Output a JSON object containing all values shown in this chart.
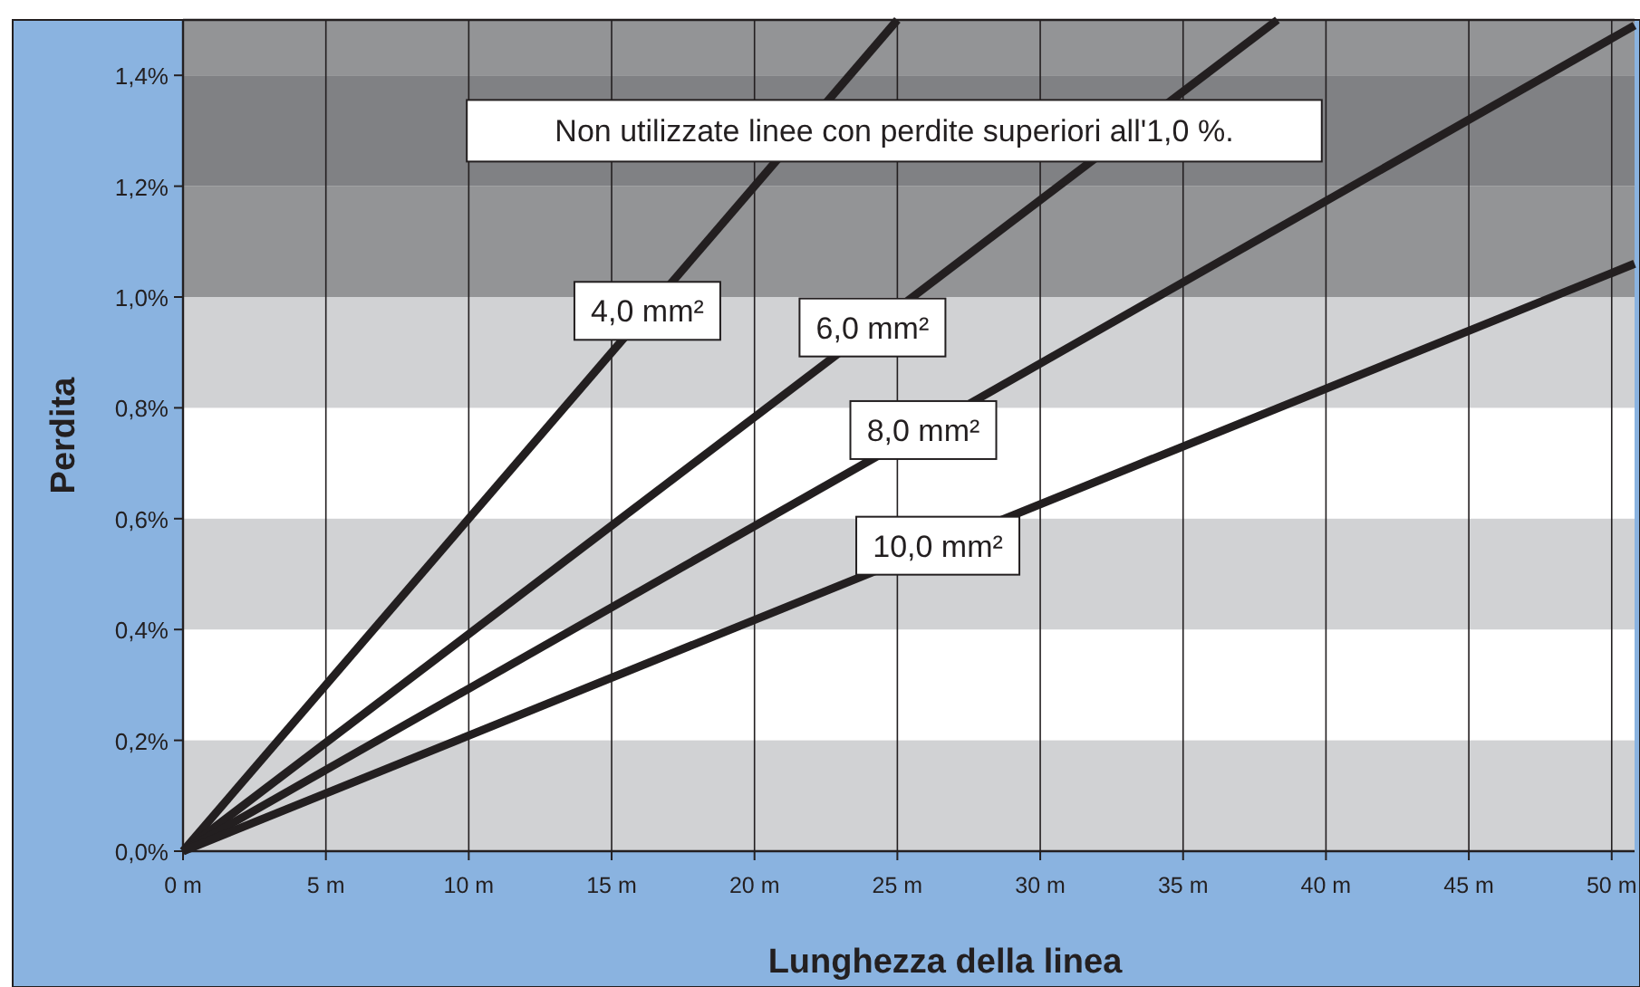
{
  "chart_data": {
    "type": "line",
    "xlabel": "Lunghezza della linea",
    "ylabel": "Perdita",
    "xlim": [
      0,
      50.8
    ],
    "ylim": [
      0,
      1.5
    ],
    "xticks": [
      {
        "value": 0,
        "label": "0 m"
      },
      {
        "value": 5,
        "label": "5 m"
      },
      {
        "value": 10,
        "label": "10 m"
      },
      {
        "value": 15,
        "label": "15 m"
      },
      {
        "value": 20,
        "label": "20 m"
      },
      {
        "value": 25,
        "label": "25 m"
      },
      {
        "value": 30,
        "label": "30 m"
      },
      {
        "value": 35,
        "label": "35 m"
      },
      {
        "value": 40,
        "label": "40 m"
      },
      {
        "value": 45,
        "label": "45 m"
      },
      {
        "value": 50,
        "label": "50 m"
      }
    ],
    "yticks": [
      {
        "value": 0,
        "label": "0,0%"
      },
      {
        "value": 0.2,
        "label": "0,2%"
      },
      {
        "value": 0.4,
        "label": "0,4%"
      },
      {
        "value": 0.6,
        "label": "0,6%"
      },
      {
        "value": 0.8,
        "label": "0,8%"
      },
      {
        "value": 1.0,
        "label": "1,0%"
      },
      {
        "value": 1.2,
        "label": "1,2%"
      },
      {
        "value": 1.4,
        "label": "1,4%"
      }
    ],
    "grid": "x",
    "legend": false,
    "marker": "none",
    "line_style": "solid",
    "bands": [
      {
        "axis": "y",
        "from": 0,
        "to": 0.2,
        "color": "#d1d2d4"
      },
      {
        "axis": "y",
        "from": 0.4,
        "to": 0.6,
        "color": "#d1d2d4"
      },
      {
        "axis": "y",
        "from": 0.8,
        "to": 1.0,
        "color": "#d1d2d4"
      },
      {
        "axis": "y",
        "from": 1.0,
        "to": 1.2,
        "color": "#939496"
      },
      {
        "axis": "y",
        "from": 1.2,
        "to": 1.4,
        "color": "#808184"
      },
      {
        "axis": "y",
        "from": 1.4,
        "to": 1.5,
        "color": "#939496"
      }
    ],
    "series": [
      {
        "name": "4,0 mm²",
        "color": "#231f20",
        "x": [
          0,
          25
        ],
        "values": [
          0,
          1.5
        ]
      },
      {
        "name": "6,0 mm²",
        "color": "#231f20",
        "x": [
          0,
          38.3
        ],
        "values": [
          0,
          1.5
        ]
      },
      {
        "name": "8,0 mm²",
        "color": "#231f20",
        "x": [
          0,
          50.8
        ],
        "values": [
          0,
          1.49
        ]
      },
      {
        "name": "10,0 mm²",
        "color": "#231f20",
        "x": [
          0,
          50.8
        ],
        "values": [
          0,
          1.06
        ]
      }
    ],
    "annotations": [
      "Non utilizzate linee con perdite superiori all'1,0 %."
    ]
  }
}
